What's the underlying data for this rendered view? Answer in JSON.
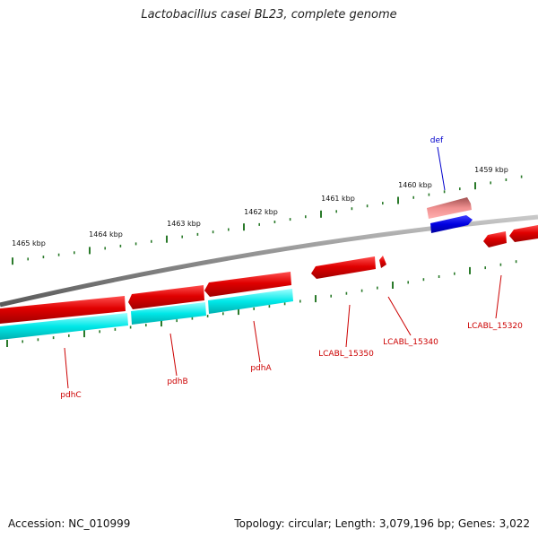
{
  "title": "Lactobacillus casei BL23, complete genome",
  "accession": "Accession: NC_010999",
  "summary": "Topology: circular; Length: 3,079,196 bp; Genes: 3,022",
  "ticks": [
    {
      "label": "1465 kbp"
    },
    {
      "label": "1464 kbp"
    },
    {
      "label": "1463 kbp"
    },
    {
      "label": "1462 kbp"
    },
    {
      "label": "1461 kbp"
    },
    {
      "label": "1460 kbp"
    },
    {
      "label": "1459 kbp"
    }
  ],
  "gene_labels": [
    {
      "name": "def",
      "color": "#0000cc"
    },
    {
      "name": "pdhC",
      "color": "#cc0000"
    },
    {
      "name": "pdhB",
      "color": "#cc0000"
    },
    {
      "name": "pdhA",
      "color": "#cc0000"
    },
    {
      "name": "LCABL_15350",
      "color": "#cc0000"
    },
    {
      "name": "LCABL_15340",
      "color": "#cc0000"
    },
    {
      "name": "LCABL_15320",
      "color": "#cc0000"
    }
  ],
  "colors": {
    "cds": "#e00000",
    "cds_pale": "#f08080",
    "gene_lower": "#00e8e8",
    "gene_upper": "#0000e0",
    "backbone": "#8a8a8a",
    "tick": "#2a7a2a"
  }
}
